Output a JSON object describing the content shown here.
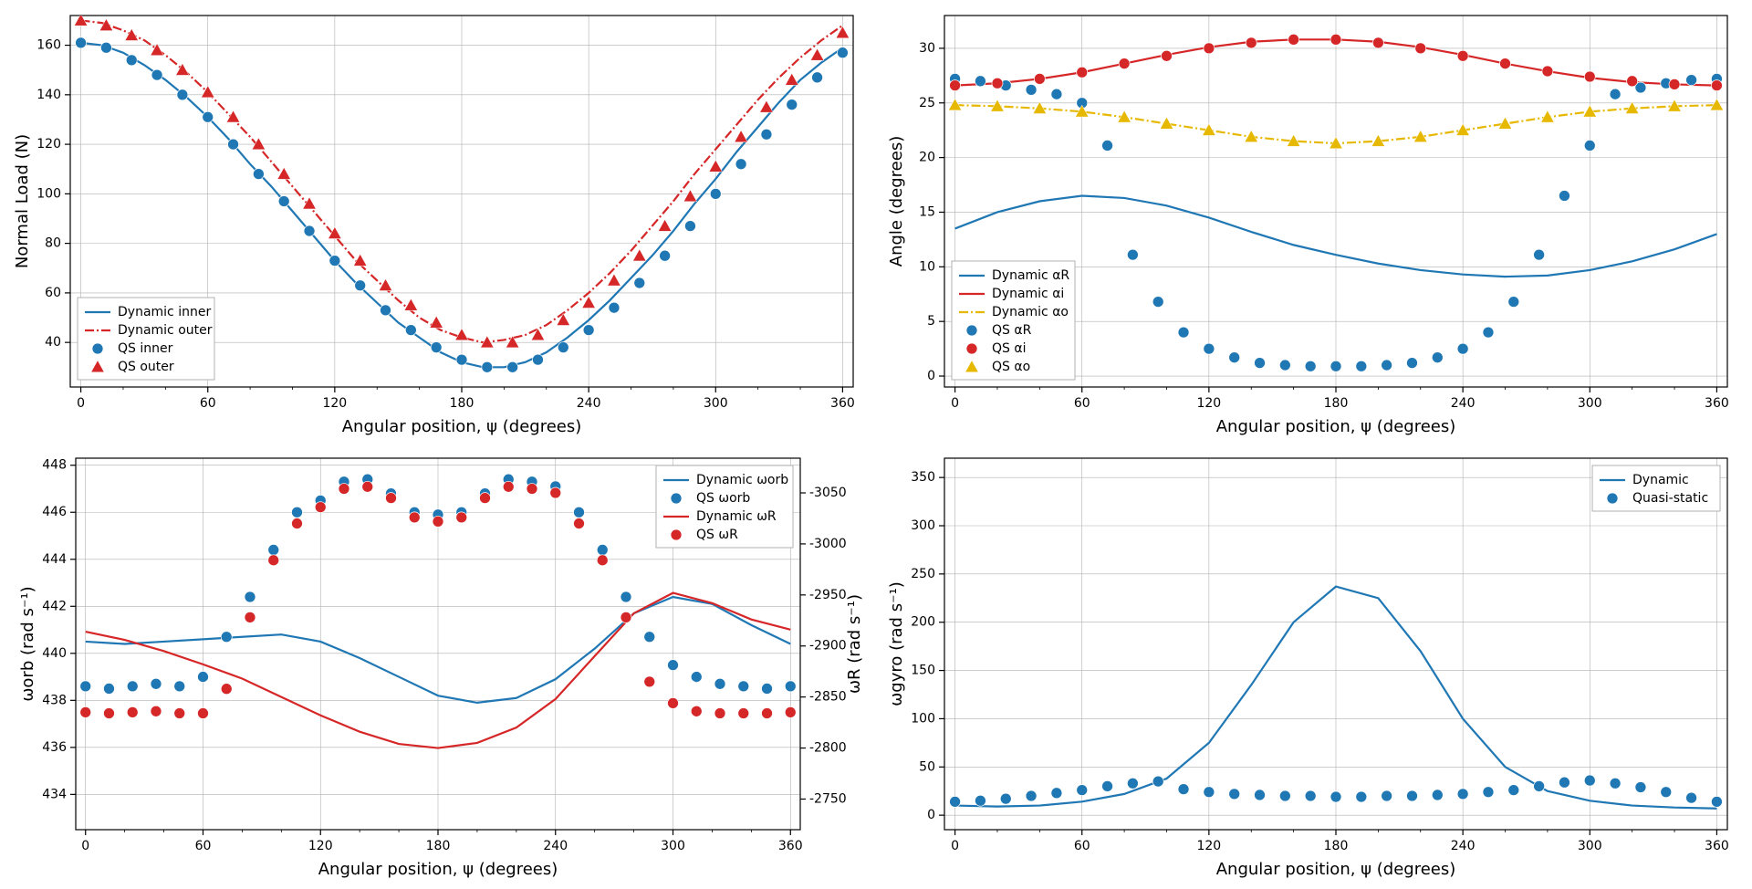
{
  "global": {
    "xlabel": "Angular position, ψ (degrees)",
    "x_ticks": [
      0,
      60,
      120,
      180,
      240,
      300,
      360
    ],
    "x_minor_step": 20,
    "background_color": "#ffffff",
    "grid_color": "#b0b0b0",
    "axis_color": "#000000",
    "tick_fontsize": 14,
    "label_fontsize": 18,
    "legend_fontsize": 14,
    "line_width": 2.2,
    "marker_size": 6
  },
  "panel_a": {
    "type": "line+scatter",
    "ylabel": "Normal Load (N)",
    "xlim": [
      -5,
      365
    ],
    "ylim": [
      22,
      172
    ],
    "y_ticks": [
      40,
      60,
      80,
      100,
      120,
      140,
      160
    ],
    "legend": {
      "position": "lower-left",
      "items": [
        {
          "label": "Dynamic inner",
          "kind": "line",
          "color": "#1f77b4",
          "dash": "solid"
        },
        {
          "label": "Dynamic outer",
          "kind": "line",
          "color": "#d62728",
          "dash": "dashdot"
        },
        {
          "label": "QS inner",
          "kind": "marker",
          "color": "#1f77b4",
          "marker": "circle"
        },
        {
          "label": "QS outer",
          "kind": "marker",
          "color": "#d62728",
          "marker": "triangle"
        }
      ]
    },
    "series": {
      "dynamic_inner": {
        "color": "#1f77b4",
        "dash": "solid",
        "x": [
          0,
          10,
          20,
          30,
          40,
          50,
          60,
          70,
          80,
          90,
          100,
          110,
          120,
          130,
          140,
          150,
          160,
          170,
          180,
          190,
          200,
          210,
          220,
          230,
          240,
          250,
          260,
          270,
          280,
          290,
          300,
          310,
          320,
          330,
          340,
          350,
          360
        ],
        "y": [
          161,
          160,
          157,
          152,
          146,
          139,
          131,
          122,
          112,
          103,
          93,
          83,
          73,
          64,
          56,
          48,
          42,
          36,
          32,
          30,
          30,
          32,
          36,
          42,
          49,
          57,
          66,
          75,
          85,
          96,
          106,
          117,
          127,
          137,
          146,
          153,
          159
        ]
      },
      "dynamic_outer": {
        "color": "#d62728",
        "dash": "dashdot",
        "x": [
          0,
          10,
          20,
          30,
          40,
          50,
          60,
          70,
          80,
          90,
          100,
          110,
          120,
          130,
          140,
          150,
          160,
          170,
          180,
          190,
          200,
          210,
          220,
          230,
          240,
          250,
          260,
          270,
          280,
          290,
          300,
          310,
          320,
          330,
          340,
          350,
          360
        ],
        "y": [
          170,
          169,
          166,
          162,
          156,
          149,
          141,
          132,
          123,
          113,
          103,
          93,
          83,
          73,
          65,
          57,
          50,
          45,
          42,
          40,
          41,
          43,
          47,
          53,
          60,
          68,
          77,
          87,
          97,
          108,
          118,
          128,
          138,
          147,
          155,
          162,
          168
        ]
      },
      "qs_inner": {
        "color": "#1f77b4",
        "marker": "circle",
        "x": [
          0,
          12,
          24,
          36,
          48,
          60,
          72,
          84,
          96,
          108,
          120,
          132,
          144,
          156,
          168,
          180,
          192,
          204,
          216,
          228,
          240,
          252,
          264,
          276,
          288,
          300,
          312,
          324,
          336,
          348,
          360
        ],
        "y": [
          161,
          159,
          154,
          148,
          140,
          131,
          120,
          108,
          97,
          85,
          73,
          63,
          53,
          45,
          38,
          33,
          30,
          30,
          33,
          38,
          45,
          54,
          64,
          75,
          87,
          100,
          112,
          124,
          136,
          147,
          157
        ]
      },
      "qs_outer": {
        "color": "#d62728",
        "marker": "triangle",
        "x": [
          0,
          12,
          24,
          36,
          48,
          60,
          72,
          84,
          96,
          108,
          120,
          132,
          144,
          156,
          168,
          180,
          192,
          204,
          216,
          228,
          240,
          252,
          264,
          276,
          288,
          300,
          312,
          324,
          336,
          348,
          360
        ],
        "y": [
          170,
          168,
          164,
          158,
          150,
          141,
          131,
          120,
          108,
          96,
          84,
          73,
          63,
          55,
          48,
          43,
          40,
          40,
          43,
          49,
          56,
          65,
          75,
          87,
          99,
          111,
          123,
          135,
          146,
          156,
          165
        ]
      }
    }
  },
  "panel_b": {
    "type": "line+scatter",
    "ylabel": "Angle (degrees)",
    "xlim": [
      -5,
      365
    ],
    "ylim": [
      -1,
      33
    ],
    "y_ticks": [
      0,
      5,
      10,
      15,
      20,
      25,
      30
    ],
    "legend": {
      "position": "lower-left",
      "items": [
        {
          "label": "Dynamic αR",
          "kind": "line",
          "color": "#1f77b4",
          "dash": "solid"
        },
        {
          "label": "Dynamic αi",
          "kind": "line",
          "color": "#d62728",
          "dash": "solid"
        },
        {
          "label": "Dynamic αo",
          "kind": "line",
          "color": "#e6b800",
          "dash": "dashdot"
        },
        {
          "label": "QS αR",
          "kind": "marker",
          "color": "#1f77b4",
          "marker": "circle"
        },
        {
          "label": "QS αi",
          "kind": "marker",
          "color": "#d62728",
          "marker": "circle"
        },
        {
          "label": "QS αo",
          "kind": "marker",
          "color": "#e6b800",
          "marker": "triangle"
        }
      ]
    },
    "series": {
      "dyn_aR": {
        "color": "#1f77b4",
        "dash": "solid",
        "x": [
          0,
          20,
          40,
          60,
          80,
          100,
          120,
          140,
          160,
          180,
          200,
          220,
          240,
          260,
          280,
          300,
          320,
          340,
          360
        ],
        "y": [
          13.5,
          15,
          16,
          16.5,
          16.3,
          15.6,
          14.5,
          13.2,
          12,
          11.1,
          10.3,
          9.7,
          9.3,
          9.1,
          9.2,
          9.7,
          10.5,
          11.6,
          13
        ]
      },
      "dyn_ai": {
        "color": "#d62728",
        "dash": "solid",
        "x": [
          0,
          20,
          40,
          60,
          80,
          100,
          120,
          140,
          160,
          180,
          200,
          220,
          240,
          260,
          280,
          300,
          320,
          340,
          360
        ],
        "y": [
          26.6,
          26.8,
          27.2,
          27.8,
          28.6,
          29.4,
          30.1,
          30.6,
          30.8,
          30.8,
          30.6,
          30.1,
          29.4,
          28.6,
          27.9,
          27.3,
          26.9,
          26.7,
          26.6
        ]
      },
      "dyn_ao": {
        "color": "#e6b800",
        "dash": "dashdot",
        "x": [
          0,
          20,
          40,
          60,
          80,
          100,
          120,
          140,
          160,
          180,
          200,
          220,
          240,
          260,
          280,
          300,
          320,
          340,
          360
        ],
        "y": [
          24.8,
          24.7,
          24.5,
          24.2,
          23.7,
          23.1,
          22.5,
          21.9,
          21.5,
          21.3,
          21.5,
          21.9,
          22.5,
          23.1,
          23.7,
          24.2,
          24.5,
          24.7,
          24.8
        ]
      },
      "qs_aR": {
        "color": "#1f77b4",
        "marker": "circle",
        "x": [
          0,
          12,
          24,
          36,
          48,
          60,
          72,
          84,
          96,
          108,
          120,
          132,
          144,
          156,
          168,
          180,
          192,
          204,
          216,
          228,
          240,
          252,
          264,
          276,
          288,
          300,
          312,
          324,
          336,
          348,
          360
        ],
        "y": [
          27.2,
          27.0,
          26.6,
          26.2,
          25.8,
          25.0,
          21.1,
          11.1,
          6.8,
          4.0,
          2.5,
          1.7,
          1.2,
          1.0,
          0.9,
          0.9,
          0.9,
          1.0,
          1.2,
          1.7,
          2.5,
          4.0,
          6.8,
          11.1,
          16.5,
          21.1,
          25.8,
          26.4,
          26.8,
          27.1,
          27.2
        ]
      },
      "qs_ai": {
        "color": "#d62728",
        "marker": "circle",
        "x": [
          0,
          20,
          40,
          60,
          80,
          100,
          120,
          140,
          160,
          180,
          200,
          220,
          240,
          260,
          280,
          300,
          320,
          340,
          360
        ],
        "y": [
          26.6,
          26.8,
          27.2,
          27.8,
          28.6,
          29.3,
          30.0,
          30.5,
          30.8,
          30.8,
          30.5,
          30.0,
          29.3,
          28.6,
          27.9,
          27.4,
          27.0,
          26.7,
          26.6
        ]
      },
      "qs_ao": {
        "color": "#e6b800",
        "marker": "triangle",
        "x": [
          0,
          20,
          40,
          60,
          80,
          100,
          120,
          140,
          160,
          180,
          200,
          220,
          240,
          260,
          280,
          300,
          320,
          340,
          360
        ],
        "y": [
          24.8,
          24.7,
          24.5,
          24.2,
          23.7,
          23.1,
          22.5,
          21.9,
          21.5,
          21.3,
          21.5,
          21.9,
          22.5,
          23.1,
          23.7,
          24.2,
          24.5,
          24.7,
          24.8
        ]
      }
    }
  },
  "panel_c": {
    "type": "dual-axis",
    "ylabel_left": "ωorb (rad s⁻¹)",
    "ylabel_right": "ωR (rad s⁻¹)",
    "xlim": [
      -5,
      365
    ],
    "ylim_left": [
      432.5,
      448.3
    ],
    "ylim_right": [
      -2720,
      -3084
    ],
    "y_ticks_left": [
      434,
      436,
      438,
      440,
      442,
      444,
      446,
      448
    ],
    "y_ticks_right": [
      -2750,
      -2800,
      -2850,
      -2900,
      -2950,
      -3000,
      -3050
    ],
    "legend": {
      "position": "upper-right",
      "items": [
        {
          "label": "Dynamic ωorb",
          "kind": "line",
          "color": "#1f77b4",
          "dash": "solid"
        },
        {
          "label": "QS ωorb",
          "kind": "marker",
          "color": "#1f77b4",
          "marker": "circle"
        },
        {
          "label": "Dynamic ωR",
          "kind": "line",
          "color": "#d62728",
          "dash": "solid"
        },
        {
          "label": "QS ωR",
          "kind": "marker",
          "color": "#d62728",
          "marker": "circle"
        }
      ]
    },
    "series": {
      "dyn_orb": {
        "axis": "left",
        "color": "#1f77b4",
        "dash": "solid",
        "x": [
          0,
          20,
          40,
          60,
          80,
          100,
          120,
          140,
          160,
          180,
          200,
          220,
          240,
          260,
          280,
          300,
          320,
          340,
          360
        ],
        "y": [
          440.5,
          440.4,
          440.5,
          440.6,
          440.7,
          440.8,
          440.5,
          439.8,
          439.0,
          438.2,
          437.9,
          438.1,
          438.9,
          440.2,
          441.7,
          442.4,
          442.1,
          441.2,
          440.4
        ]
      },
      "dyn_R": {
        "axis": "right",
        "color": "#d62728",
        "dash": "solid",
        "x": [
          0,
          20,
          40,
          60,
          80,
          100,
          120,
          140,
          160,
          180,
          200,
          220,
          240,
          260,
          280,
          300,
          320,
          340,
          360
        ],
        "y": [
          -2914,
          -2906,
          -2895,
          -2882,
          -2868,
          -2850,
          -2832,
          -2816,
          -2804,
          -2800,
          -2805,
          -2820,
          -2848,
          -2890,
          -2932,
          -2952,
          -2942,
          -2926,
          -2916
        ]
      },
      "qs_orb": {
        "axis": "left",
        "color": "#1f77b4",
        "marker": "circle",
        "x": [
          0,
          12,
          24,
          36,
          48,
          60,
          72,
          84,
          96,
          108,
          120,
          132,
          144,
          156,
          168,
          180,
          192,
          204,
          216,
          228,
          240,
          252,
          264,
          276,
          288,
          300,
          312,
          324,
          336,
          348,
          360
        ],
        "y": [
          438.6,
          438.5,
          438.6,
          438.7,
          438.6,
          439.0,
          440.7,
          442.4,
          444.4,
          446.0,
          446.5,
          447.3,
          447.4,
          446.8,
          446.0,
          445.9,
          446.0,
          446.8,
          447.4,
          447.3,
          447.1,
          446.0,
          444.4,
          442.4,
          440.7,
          439.5,
          439.0,
          438.7,
          438.6,
          438.5,
          438.6
        ]
      },
      "qs_R": {
        "axis": "right",
        "color": "#d62728",
        "marker": "circle",
        "x": [
          0,
          12,
          24,
          36,
          48,
          60,
          72,
          84,
          96,
          108,
          120,
          132,
          144,
          156,
          168,
          180,
          192,
          204,
          216,
          228,
          240,
          252,
          264,
          276,
          288,
          300,
          312,
          324,
          336,
          348,
          360
        ],
        "y": [
          -2835,
          -2834,
          -2835,
          -2836,
          -2834,
          -2834,
          -2858,
          -2928,
          -2984,
          -3020,
          -3036,
          -3054,
          -3056,
          -3045,
          -3026,
          -3022,
          -3026,
          -3045,
          -3056,
          -3054,
          -3050,
          -3020,
          -2984,
          -2928,
          -2865,
          -2844,
          -2836,
          -2834,
          -2834,
          -2834,
          -2835
        ]
      }
    }
  },
  "panel_d": {
    "type": "line+scatter",
    "ylabel": "ωgyro (rad s⁻¹)",
    "xlim": [
      -5,
      365
    ],
    "ylim": [
      -15,
      370
    ],
    "y_ticks": [
      0,
      50,
      100,
      150,
      200,
      250,
      300,
      350
    ],
    "legend": {
      "position": "upper-right",
      "items": [
        {
          "label": "Dynamic",
          "kind": "line",
          "color": "#1f77b4",
          "dash": "solid"
        },
        {
          "label": "Quasi-static",
          "kind": "marker",
          "color": "#1f77b4",
          "marker": "circle"
        }
      ]
    },
    "series": {
      "dyn": {
        "color": "#1f77b4",
        "dash": "solid",
        "x": [
          0,
          20,
          40,
          60,
          80,
          100,
          120,
          140,
          160,
          180,
          200,
          220,
          240,
          260,
          280,
          300,
          320,
          340,
          360
        ],
        "y": [
          10,
          9,
          10,
          14,
          22,
          38,
          75,
          135,
          200,
          237,
          225,
          170,
          100,
          50,
          25,
          15,
          10,
          8,
          7
        ]
      },
      "qs": {
        "color": "#1f77b4",
        "marker": "circle",
        "x": [
          0,
          12,
          24,
          36,
          48,
          60,
          72,
          84,
          96,
          108,
          120,
          132,
          144,
          156,
          168,
          180,
          192,
          204,
          216,
          228,
          240,
          252,
          264,
          276,
          288,
          300,
          312,
          324,
          336,
          348,
          360
        ],
        "y": [
          14,
          15,
          17,
          20,
          23,
          26,
          30,
          33,
          35,
          27,
          24,
          22,
          21,
          20,
          20,
          19,
          19,
          20,
          20,
          21,
          22,
          24,
          26,
          30,
          34,
          36,
          33,
          29,
          24,
          18,
          14
        ]
      }
    }
  }
}
